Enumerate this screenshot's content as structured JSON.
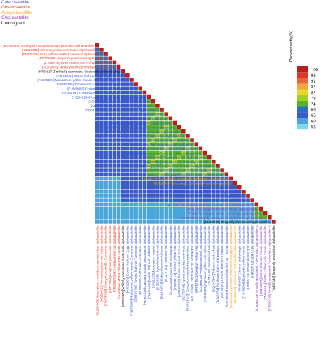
{
  "legend": [
    {
      "label": "Colecusatellite",
      "color": "#3a54c9"
    },
    {
      "label": "Gosmusatellite",
      "color": "#e8402a"
    },
    {
      "label": "Ageyesisatellite",
      "color": "#f5a21b"
    },
    {
      "label": "Clecrusatellite",
      "color": "#8c3fc0"
    },
    {
      "label": "Unassigned",
      "color": "#111111"
    }
  ],
  "colorbar": {
    "title": "Pairwise identity(%)",
    "ticks": [
      "100",
      "96",
      "91",
      "87",
      "82",
      "78",
      "74",
      "69",
      "65",
      "60",
      "56"
    ],
    "colors": [
      "#b81e1e",
      "#d73a2a",
      "#e9643c",
      "#f0a83a",
      "#e8d628",
      "#a7cd2a",
      "#57b429",
      "#2c6fbd",
      "#3a5ac7",
      "#4aa6d8",
      "#7fd6ee"
    ]
  },
  "chart_data": {
    "type": "heatmap",
    "title": "",
    "colorbar_label": "Pairwise identity(%)",
    "rows": [
      {
        "label": "[EU384606] Gossypium mustelinum symptomless alphasatellite",
        "group": "Gosmusatellite"
      },
      {
        "label": "[KC699931] Vernonia yellow vein Fujian alphasatellite",
        "group": "Gosmusatellite"
      },
      {
        "label": "[FN675285] Okra yellow crinkle Cameroon alphasatellite",
        "group": "Gosmusatellite"
      },
      {
        "label": "[FR772086] Hollyhock yellow vein alphasatellite",
        "group": "Gosmusatellite"
      },
      {
        "label": "[FJ946570] Okra enation leaf curl alphasatellite",
        "group": "Gosmusatellite"
      },
      {
        "label": "[JX163030] Mesta yellow vein mosaic alphasatellite",
        "group": "Gosmusatellite"
      },
      {
        "label": "[KT099172] Whitefly associated Guatemala alphasatellite",
        "group": "Unassigned"
      },
      {
        "label": "[AJ512962] Cotton leaf curl Egypt alphasatellite",
        "group": "Colecusatellite"
      },
      {
        "label": "[FN675297] Malvastrum yellow mosaic Cameroon alphasatellite",
        "group": "Colecusatellite"
      },
      {
        "label": "[FN675296] Tomato leaf curl Cameroon alphasatellite",
        "group": "Colecusatellite"
      },
      {
        "label": "[EU589450] Cotton leaf curl Gezira alphasatellite",
        "group": "Colecusatellite"
      },
      {
        "label": "[HE984140] Cassava mosaic Madagascar alphasatellite",
        "group": "Colecusatellite"
      },
      {
        "label": "[HQ343234] Cotton leaf curl Lucknow alphasatellite",
        "group": "Colecusatellite"
      },
      {
        "label": "[JX512532] Ageratum enation alphasatellite",
        "group": "Colecusatellite"
      },
      {
        "label": "[KJ509346] Synedrella leaf curl alphasatellite",
        "group": "Colecusatellite"
      },
      {
        "label": "[DQ641718] Sida yellow vein Vietnam alphasatellite",
        "group": "Colecusatellite"
      },
      {
        "label": "[KF471043] Chilli leaf curl alphasatellite",
        "group": "Colecusatellite"
      },
      {
        "label": "[AJ132344] Cotton leaf curl Multan alphasatellite",
        "group": "Colecusatellite"
      },
      {
        "label": "[FM956716] Bhendi yellow vein alphasatellite",
        "group": "Colecusatellite"
      },
      {
        "label": "[AM236760] Tomato leaf curl Yemen alphasatellite",
        "group": "Colecusatellite"
      },
      {
        "label": "[JX370736] Ageratum yellow vein India alphasatellite",
        "group": "Colecusatellite"
      },
      {
        "label": "[EU384630] Gossypium darwinii symptomless alphasatellite",
        "group": "Colecusatellite"
      },
      {
        "label": "[FR772088] Cotton leaf curl Shadadpur alphasatellite",
        "group": "Colecusatellite"
      },
      {
        "label": "[KF765752] Ageratum yellow vein alphasatellite",
        "group": "Colecusatellite"
      },
      {
        "label": "[KX166428] Pedilanthus leaf curl alphasatellite",
        "group": "Colecusatellite"
      },
      {
        "label": "[AJ238493] Ageratum yellow vein China alphasatellite",
        "group": "Colecusatellite"
      },
      {
        "label": "AM749493] Tomato leaf curl alphasatellite",
        "group": "Colecusatellite"
      },
      {
        "label": "[HQ407396] Tobacco curly shoot alphasatellite",
        "group": "Colecusatellite"
      },
      {
        "label": "[JX569769] Sunflower leaf curl Karnataka alphasatellite",
        "group": "Colecusatellite"
      },
      {
        "label": "[AJ579359] Tomato leaf curl Thailand alphasatellite",
        "group": "Colecusatellite"
      },
      {
        "label": "[KY796649] Tomato yellow leaf curl Yunnan alphasatellite",
        "group": "Colecusatellite"
      },
      {
        "label": "[AJ416153] Ageratum yellow vein Singapore alphasatellite",
        "group": "Ageyesisatellite"
      },
      {
        "label": "[HQ326543] Cotton leaf curl Saudi Arabia alphasatellite",
        "group": "Ageyesisatellite"
      },
      {
        "label": "[FN436007] Cleome leaf crumple alphasatellite",
        "group": "Colecusatellite"
      },
      {
        "label": "[FN436005] Euphorbia yellow mosaic alphasatellite",
        "group": "Colecusatellite"
      },
      {
        "label": "[KX348329] Tomato yellow spot alphasatellite",
        "group": "Colecusatellite"
      },
      {
        "label": "[FN658712] Sida Cuba alphasatellite",
        "group": "Colecusatellite"
      },
      {
        "label": "[KT099173] Whitefly associated Puerto Rico alphasatellite 1",
        "group": "Clecrusatellite"
      },
      {
        "label": "[HM153570] Melon chlorotic mosaic alphasatellite",
        "group": "Clecrusatellite"
      },
      {
        "label": "[FN658711] Cotton yellow vein mosaic alphasatellite",
        "group": "Clecrusatellite"
      },
      {
        "label": "[KT099170] Whitefly associated Puerto Rico alphasatellite 2",
        "group": "Clecrusatellite"
      },
      {
        "label": "[JX458740] Dragonfly associated alphasatellite",
        "group": "Unassigned"
      }
    ]
  }
}
